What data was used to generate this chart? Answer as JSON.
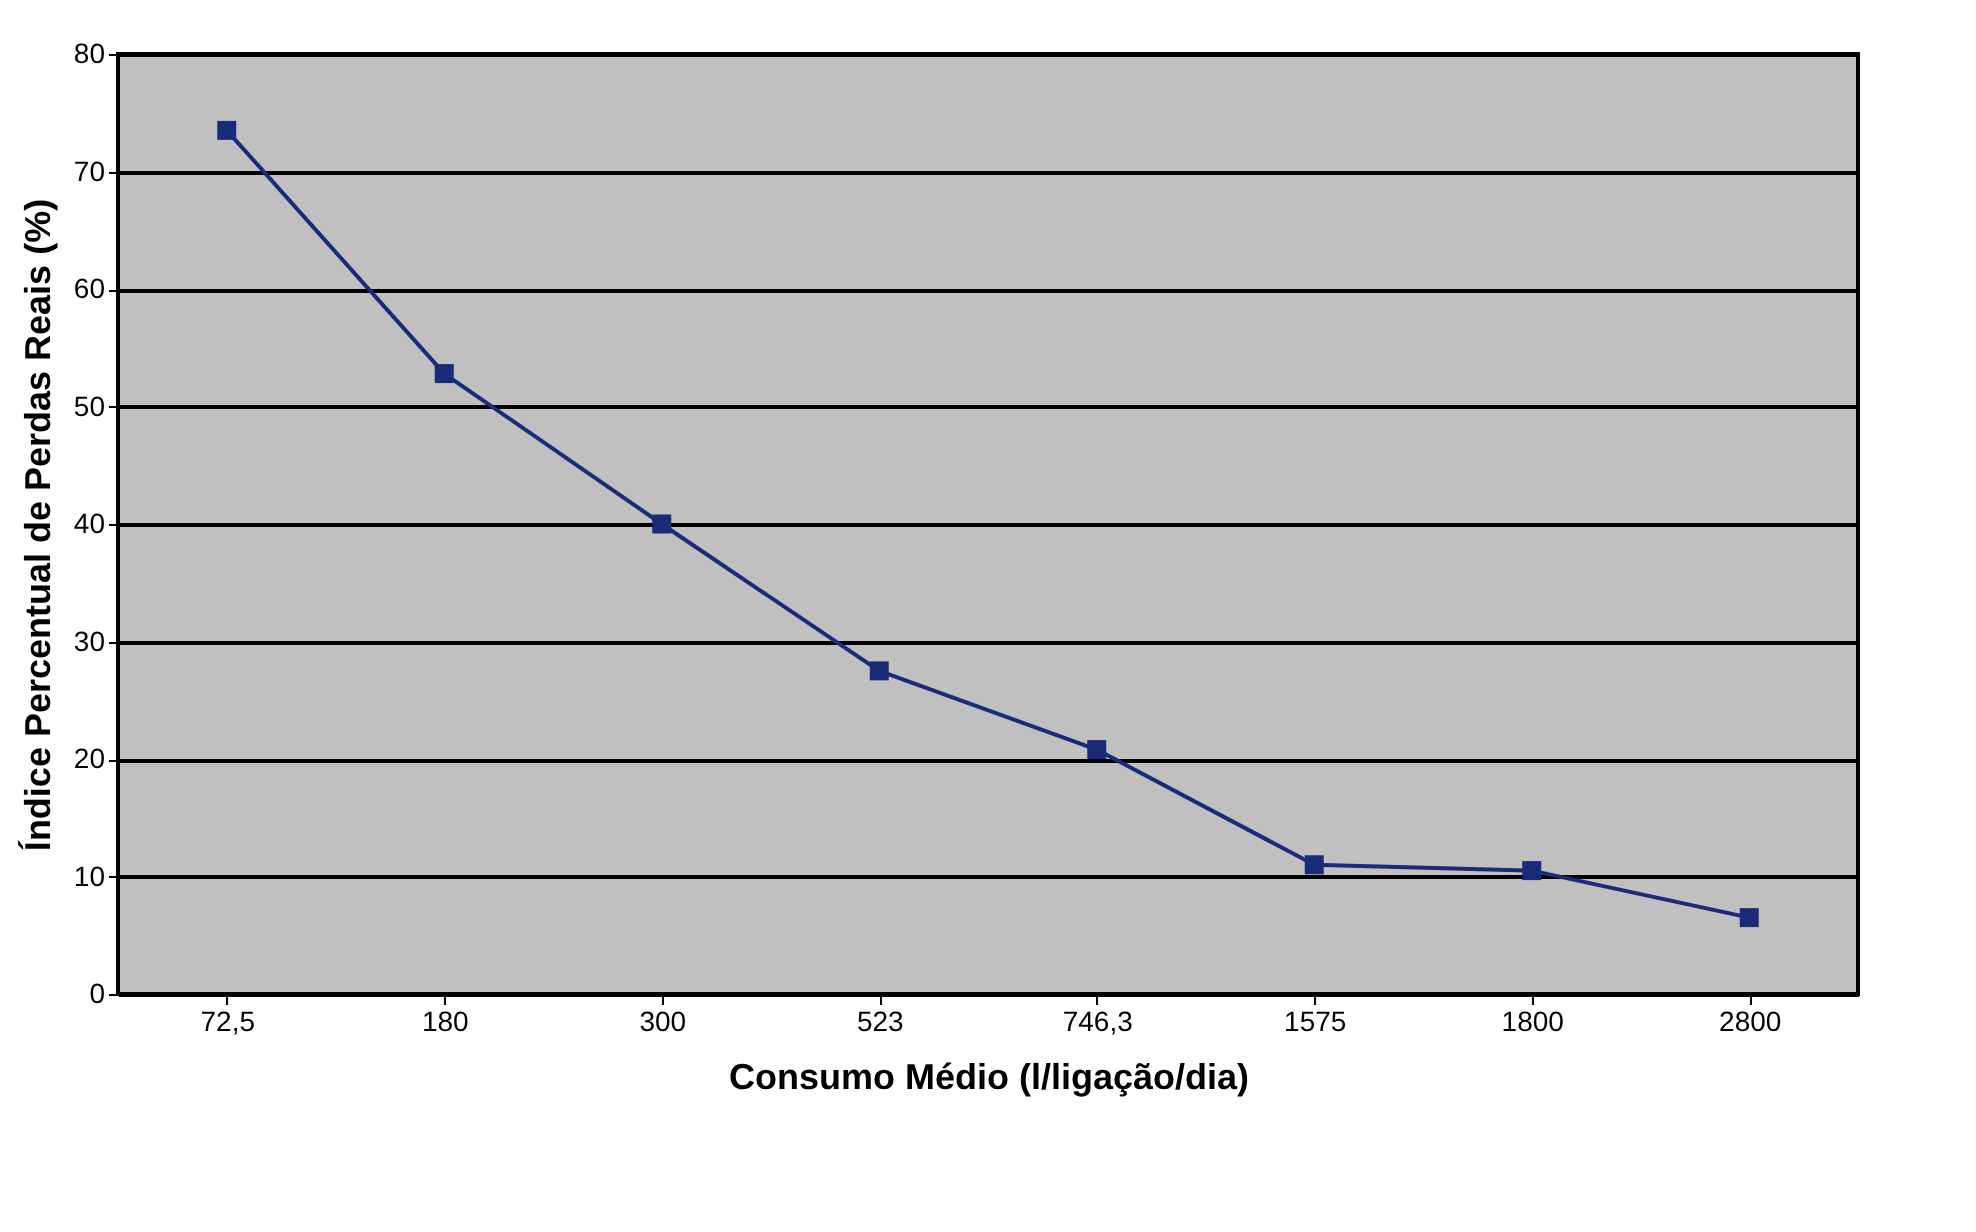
{
  "chart_data": {
    "type": "line",
    "xlabel": "Consumo Médio (l/ligação/dia)",
    "ylabel": "Índice Percentual de Perdas Reais (%)",
    "categories": [
      "72,5",
      "180",
      "300",
      "523",
      "746,3",
      "1575",
      "1800",
      "2800"
    ],
    "series": [
      {
        "color": "#1c2a7a",
        "values": [
          73.5,
          52.8,
          40,
          27.5,
          20.8,
          11,
          10.5,
          6.5
        ]
      }
    ],
    "ylim": [
      0,
      80
    ],
    "yticks": [
      0,
      10,
      20,
      30,
      40,
      50,
      60,
      70,
      80
    ],
    "grid": "y",
    "marker": "square",
    "line_style": "solid"
  }
}
